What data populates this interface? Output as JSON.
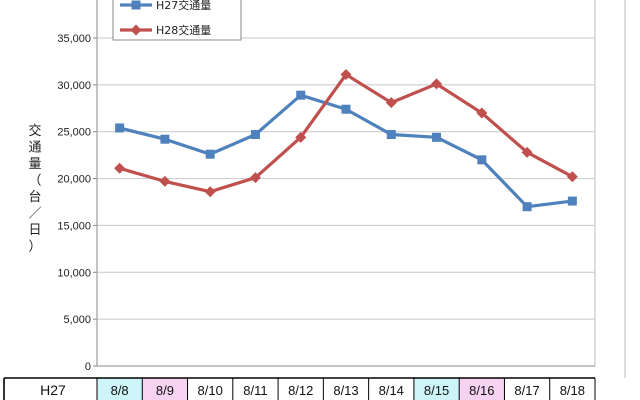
{
  "chart_data": {
    "type": "line",
    "ylabel": "交通量（台／日）",
    "ylim": [
      0,
      35000
    ],
    "ytick_labels": [
      "0",
      "5,000",
      "10,000",
      "15,000",
      "20,000",
      "25,000",
      "30,000",
      "35,000"
    ],
    "categories": [
      "8/8",
      "8/9",
      "8/10",
      "8/11",
      "8/12",
      "8/13",
      "8/14",
      "8/15",
      "8/16",
      "8/17",
      "8/18"
    ],
    "grid": true,
    "legend_position": "top-left",
    "series": [
      {
        "name": "H27交通量",
        "color": "#4f81bd",
        "marker": "square",
        "values": [
          25400,
          24200,
          22600,
          24700,
          28900,
          27400,
          24700,
          24400,
          22000,
          17000,
          17600
        ]
      },
      {
        "name": "H28交通量",
        "color": "#c0504d",
        "marker": "diamond",
        "values": [
          21100,
          19700,
          18600,
          20100,
          24400,
          31100,
          28100,
          30100,
          27000,
          22800,
          20200
        ]
      }
    ],
    "table": {
      "row_label": "H27",
      "highlights": [
        {
          "color": "#cdf4f8",
          "categories": [
            "8/8",
            "8/15"
          ]
        },
        {
          "color": "#f7d3f2",
          "categories": [
            "8/9",
            "8/16"
          ]
        }
      ]
    }
  }
}
